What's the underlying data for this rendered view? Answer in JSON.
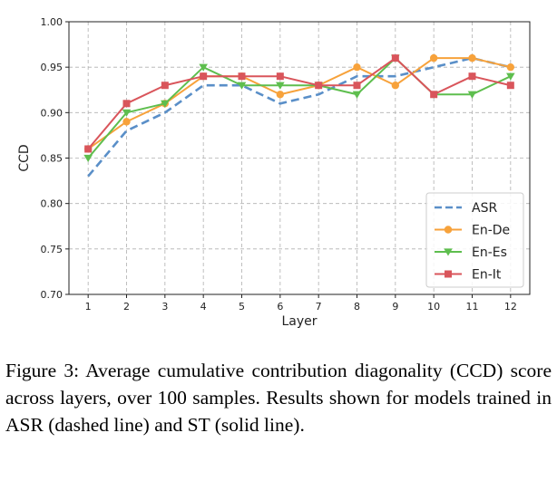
{
  "chart_data": {
    "type": "line",
    "x": [
      1,
      2,
      3,
      4,
      5,
      6,
      7,
      8,
      9,
      10,
      11,
      12
    ],
    "xticks": [
      "1",
      "2",
      "3",
      "4",
      "5",
      "6",
      "7",
      "8",
      "9",
      "10",
      "11",
      "12"
    ],
    "yticks": [
      "0.70",
      "0.75",
      "0.80",
      "0.85",
      "0.90",
      "0.95",
      "1.00"
    ],
    "xlabel": "Layer",
    "ylabel": "CCD",
    "xlim": [
      0.5,
      12.5
    ],
    "ylim": [
      0.7,
      1.0
    ],
    "grid": true,
    "legend_position": "bottom-right",
    "series": [
      {
        "name": "ASR",
        "color": "#5a8fc8",
        "style": "dashed",
        "marker": "none",
        "values": [
          0.83,
          0.88,
          0.9,
          0.93,
          0.93,
          0.91,
          0.92,
          0.94,
          0.94,
          0.95,
          0.96,
          0.95
        ]
      },
      {
        "name": "En-De",
        "color": "#f7a23b",
        "style": "solid",
        "marker": "circle",
        "values": [
          0.86,
          0.89,
          0.91,
          0.94,
          0.94,
          0.92,
          0.93,
          0.95,
          0.93,
          0.96,
          0.96,
          0.95
        ]
      },
      {
        "name": "En-Es",
        "color": "#5ebe4e",
        "style": "solid",
        "marker": "triangle-down",
        "values": [
          0.85,
          0.9,
          0.91,
          0.95,
          0.93,
          0.93,
          0.93,
          0.92,
          0.96,
          0.92,
          0.92,
          0.94
        ]
      },
      {
        "name": "En-It",
        "color": "#d9555b",
        "style": "solid",
        "marker": "square",
        "values": [
          0.86,
          0.91,
          0.93,
          0.94,
          0.94,
          0.94,
          0.93,
          0.93,
          0.96,
          0.92,
          0.94,
          0.93
        ]
      }
    ]
  },
  "caption": "Figure 3: Average cumulative contribution diagonality (CCD) score across layers, over 100 samples. Results shown for models trained in ASR (dashed line) and ST (solid line)."
}
